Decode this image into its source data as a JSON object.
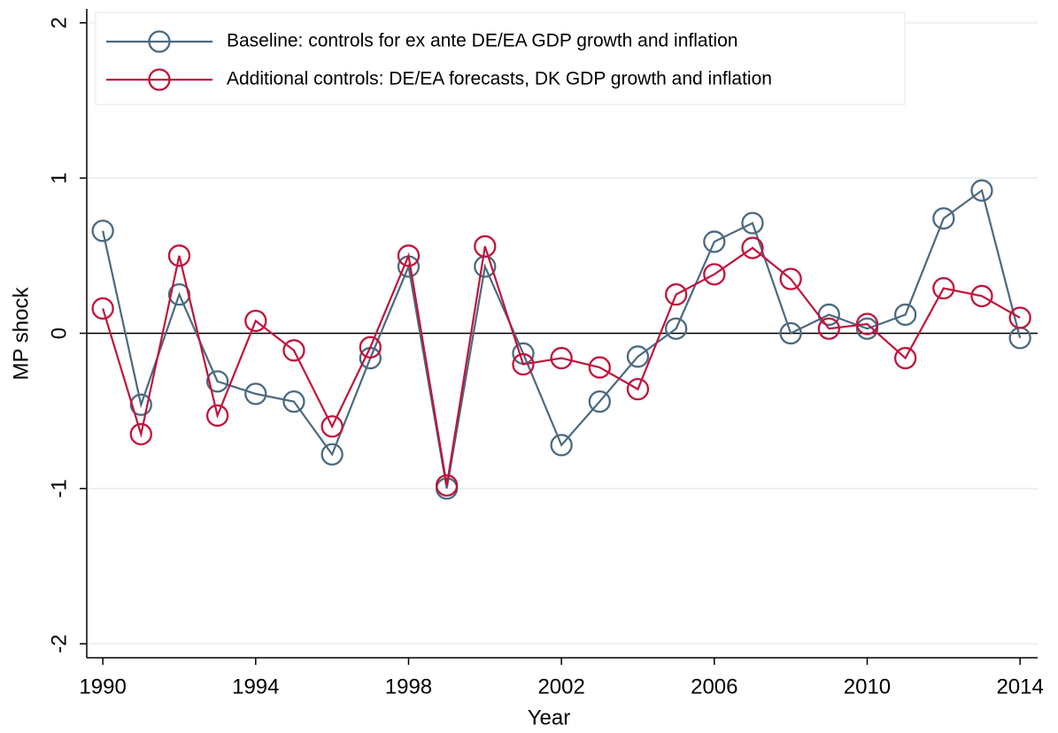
{
  "chart_data": {
    "type": "line",
    "x": [
      1990,
      1991,
      1992,
      1993,
      1994,
      1995,
      1996,
      1997,
      1998,
      1999,
      2000,
      2001,
      2002,
      2003,
      2004,
      2005,
      2006,
      2007,
      2008,
      2009,
      2010,
      2011,
      2012,
      2013,
      2014
    ],
    "series": [
      {
        "name": "Baseline: controls for ex ante DE/EA GDP growth and inflation",
        "color": "#4b6a80",
        "values": [
          0.66,
          -0.46,
          0.25,
          -0.31,
          -0.39,
          -0.44,
          -0.78,
          -0.16,
          0.43,
          -1.0,
          0.43,
          -0.13,
          -0.72,
          -0.44,
          -0.15,
          0.03,
          0.59,
          0.71,
          0.0,
          0.12,
          0.03,
          0.12,
          0.74,
          0.92,
          -0.03
        ]
      },
      {
        "name": "Additional controls: DE/EA forecasts, DK GDP growth and inflation",
        "color": "#c0143c",
        "values": [
          0.16,
          -0.65,
          0.5,
          -0.53,
          0.08,
          -0.11,
          -0.6,
          -0.09,
          0.5,
          -0.98,
          0.56,
          -0.2,
          -0.16,
          -0.22,
          -0.36,
          0.25,
          0.38,
          0.55,
          0.35,
          0.03,
          0.06,
          -0.16,
          0.29,
          0.24,
          0.1
        ]
      }
    ],
    "xlabel": "Year",
    "ylabel": "MP shock",
    "xlim": [
      1989.58,
      2014.46
    ],
    "ylim": [
      -2.09,
      2.09
    ],
    "xticks": [
      1990,
      1994,
      1998,
      2002,
      2006,
      2010,
      2014
    ],
    "yticks": [
      -2,
      -1,
      0,
      1,
      2
    ],
    "grid": true,
    "legend": "top-left"
  }
}
